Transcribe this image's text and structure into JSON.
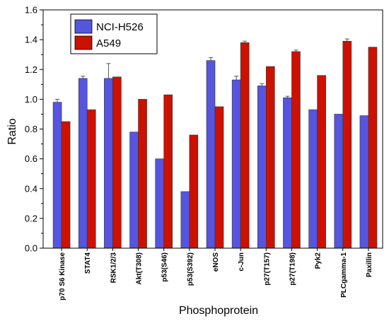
{
  "chart_data": {
    "type": "bar",
    "title": "",
    "xlabel": "Phosphoprotein",
    "ylabel": "Ratio",
    "ylim": [
      0.0,
      1.6
    ],
    "yticks": [
      "0.0",
      "0.2",
      "0.4",
      "0.6",
      "0.8",
      "1.0",
      "1.2",
      "1.4",
      "1.6"
    ],
    "categories": [
      "p70 S6 Kinase",
      "STAT4",
      "RSK1/2/3",
      "Akt(T308)",
      "p53(S46)",
      "p53(S392)",
      "eNOS",
      "c-Jun",
      "p27(T157)",
      "p27(T198)",
      "Pyk2",
      "PLCgamma-1",
      "Paxillin"
    ],
    "series": [
      {
        "name": "NCI-H526",
        "color": "#5555e0",
        "values": [
          0.98,
          1.14,
          1.14,
          0.78,
          0.6,
          0.38,
          1.26,
          1.13,
          1.09,
          1.01,
          0.93,
          0.9,
          0.89
        ],
        "errors": [
          0.02,
          0.015,
          0.1,
          0.0,
          0.0,
          0.0,
          0.02,
          0.025,
          0.015,
          0.01,
          0.0,
          0.0,
          0.0
        ]
      },
      {
        "name": "A549",
        "color": "#cc1100",
        "values": [
          0.85,
          0.93,
          1.15,
          1.0,
          1.03,
          0.76,
          0.95,
          1.38,
          1.22,
          1.32,
          1.16,
          1.39,
          1.35
        ],
        "errors": [
          0.0,
          0.0,
          0.0,
          0.0,
          0.0,
          0.0,
          0.0,
          0.01,
          0.0,
          0.01,
          0.0,
          0.015,
          0.0
        ]
      }
    ],
    "legend": "top-left"
  }
}
